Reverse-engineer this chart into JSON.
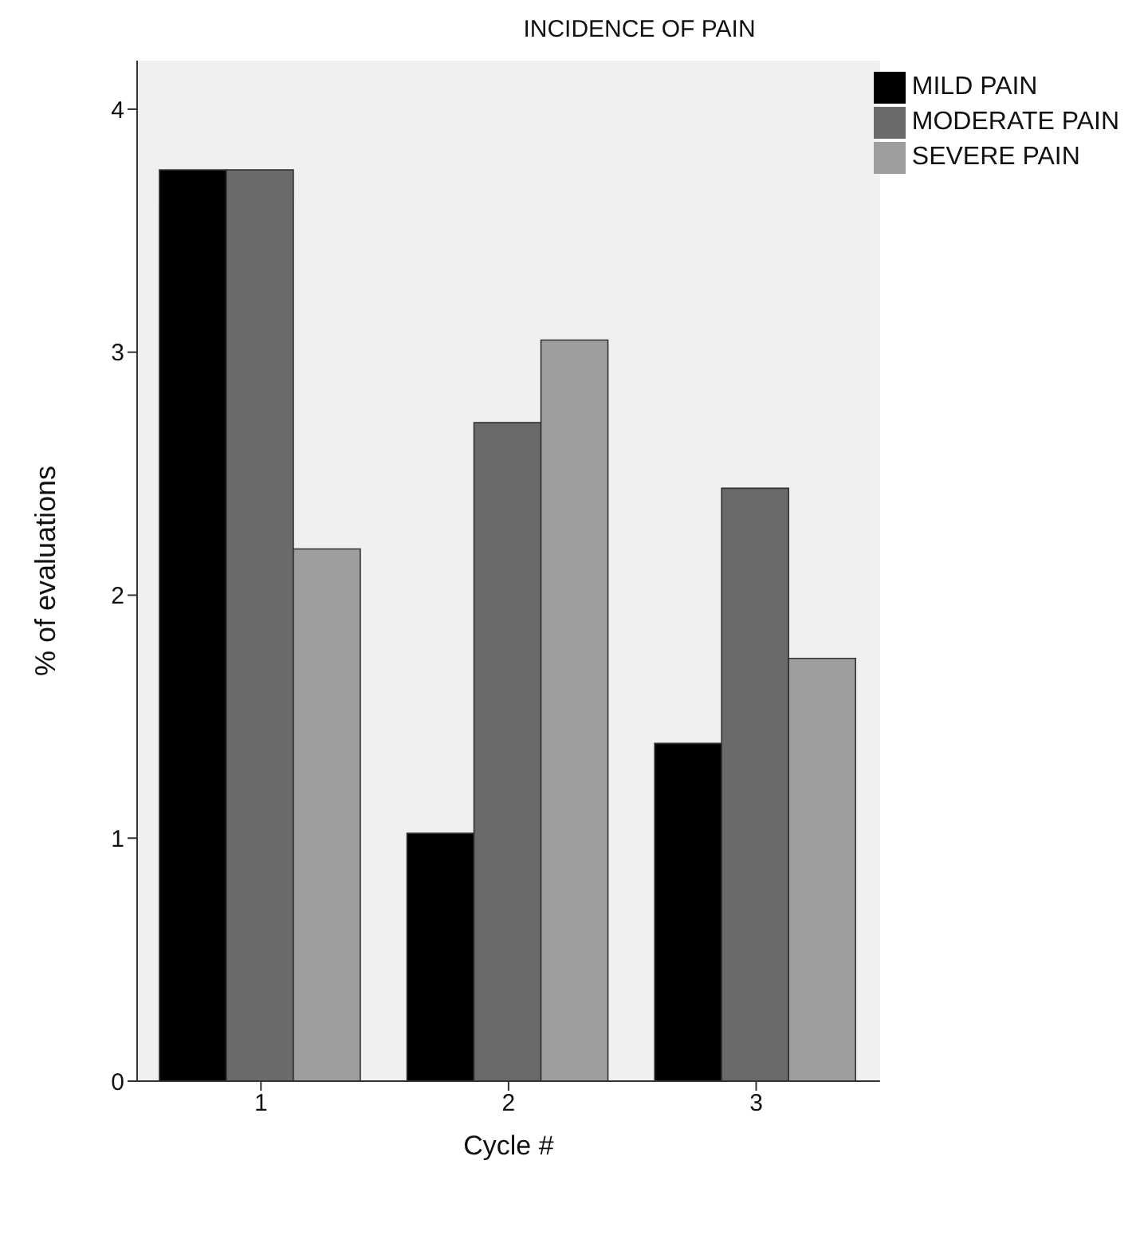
{
  "chart_data": {
    "type": "bar",
    "title": "INCIDENCE OF PAIN",
    "xlabel": "Cycle #",
    "ylabel": "% of evaluations",
    "categories": [
      "1",
      "2",
      "3"
    ],
    "series": [
      {
        "name": "MILD PAIN",
        "color": "#000000",
        "values": [
          3.75,
          1.02,
          1.39
        ]
      },
      {
        "name": "MODERATE PAIN",
        "color": "#6a6a6a",
        "values": [
          3.75,
          2.71,
          2.44
        ]
      },
      {
        "name": "SEVERE PAIN",
        "color": "#9e9e9e",
        "values": [
          2.19,
          3.05,
          1.74
        ]
      }
    ],
    "ylim": [
      0,
      4.2
    ],
    "yticks": [
      0,
      1,
      2,
      3,
      4
    ],
    "grid": false,
    "legend": "top right"
  }
}
